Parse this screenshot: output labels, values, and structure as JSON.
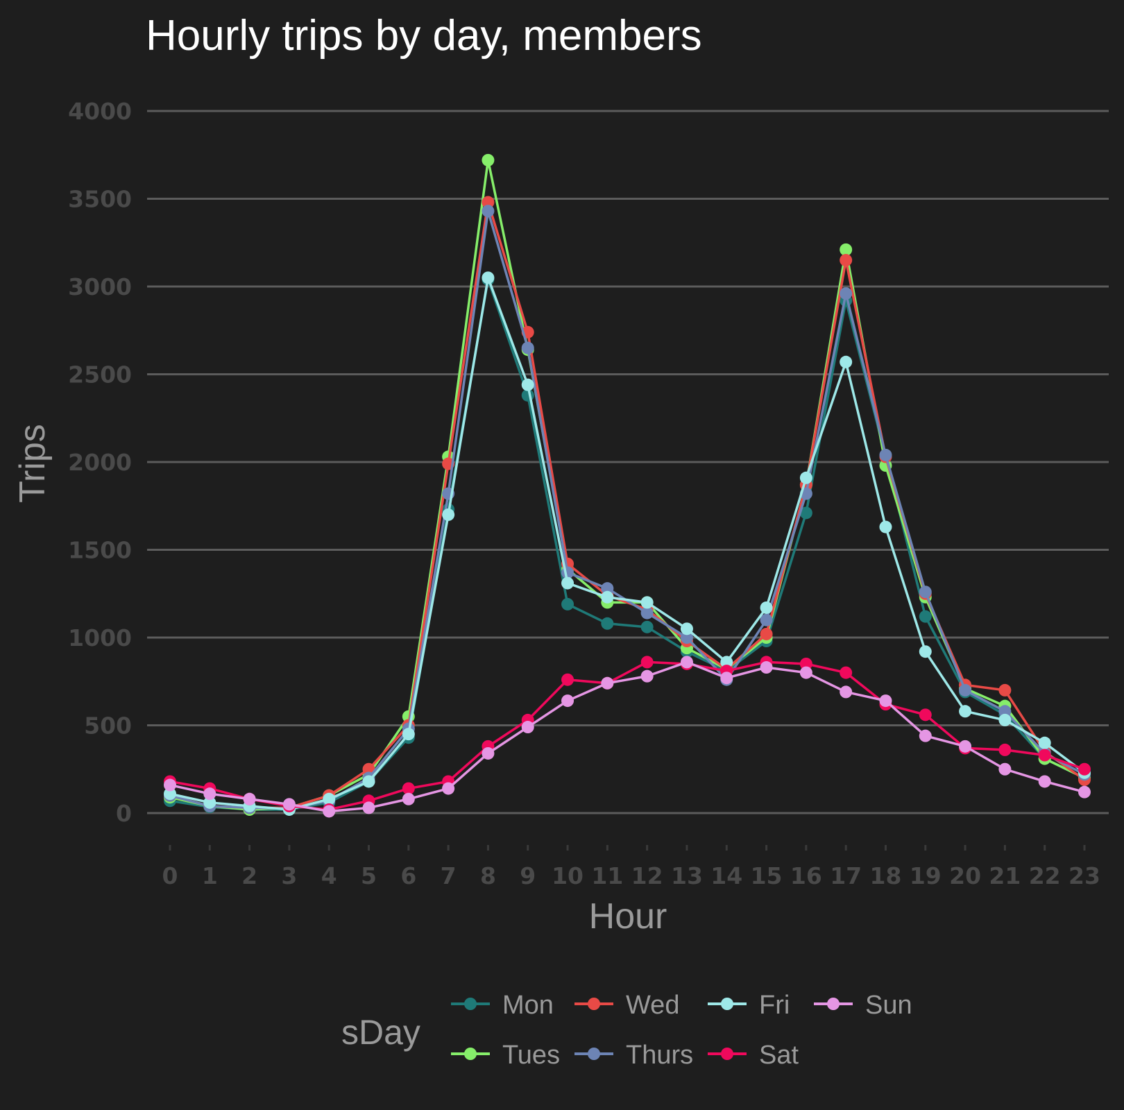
{
  "chart_data": {
    "type": "line",
    "title": "Hourly trips by day, members",
    "xlabel": "Hour",
    "ylabel": "Trips",
    "x": [
      0,
      1,
      2,
      3,
      4,
      5,
      6,
      7,
      8,
      9,
      10,
      11,
      12,
      13,
      14,
      15,
      16,
      17,
      18,
      19,
      20,
      21,
      22,
      23
    ],
    "ylim": [
      0,
      4000
    ],
    "yticks": [
      0,
      500,
      1000,
      1500,
      2000,
      2500,
      3000,
      3500,
      4000
    ],
    "grid": true,
    "legend": {
      "title": "sDay",
      "placement": "bottom",
      "order": [
        "Mon",
        "Tues",
        "Wed",
        "Thurs",
        "Fri",
        "Sat",
        "Sun"
      ]
    },
    "series": [
      {
        "name": "Mon",
        "color": "#1f7a78",
        "values": [
          70,
          35,
          20,
          20,
          60,
          180,
          430,
          1730,
          3040,
          2380,
          1190,
          1080,
          1060,
          920,
          810,
          980,
          1710,
          2920,
          2030,
          1120,
          690,
          560,
          310,
          200
        ]
      },
      {
        "name": "Tues",
        "color": "#86ee6a",
        "values": [
          90,
          40,
          20,
          30,
          100,
          220,
          550,
          2030,
          3720,
          2640,
          1390,
          1200,
          1200,
          940,
          820,
          1000,
          1870,
          3210,
          1980,
          1230,
          710,
          610,
          310,
          200
        ]
      },
      {
        "name": "Wed",
        "color": "#e84a46",
        "values": [
          100,
          40,
          30,
          30,
          100,
          250,
          500,
          1990,
          3480,
          2740,
          1420,
          1240,
          1160,
          980,
          820,
          1020,
          1870,
          3150,
          2030,
          1250,
          730,
          700,
          350,
          190
        ]
      },
      {
        "name": "Thurs",
        "color": "#6d84b5",
        "values": [
          100,
          40,
          30,
          25,
          70,
          200,
          480,
          1820,
          3430,
          2650,
          1370,
          1280,
          1140,
          1000,
          760,
          1100,
          1820,
          2960,
          2040,
          1260,
          700,
          580,
          340,
          220
        ]
      },
      {
        "name": "Fri",
        "color": "#9ee8e8",
        "values": [
          110,
          60,
          40,
          20,
          80,
          180,
          450,
          1700,
          3050,
          2440,
          1310,
          1230,
          1200,
          1050,
          860,
          1170,
          1910,
          2570,
          1630,
          920,
          580,
          530,
          400,
          230
        ]
      },
      {
        "name": "Sat",
        "color": "#f0095c",
        "values": [
          180,
          140,
          80,
          40,
          20,
          70,
          140,
          180,
          380,
          530,
          760,
          740,
          860,
          850,
          810,
          860,
          850,
          800,
          620,
          560,
          370,
          360,
          330,
          250
        ]
      },
      {
        "name": "Sun",
        "color": "#e596e4",
        "values": [
          160,
          110,
          80,
          50,
          10,
          30,
          80,
          140,
          340,
          490,
          640,
          740,
          780,
          860,
          770,
          830,
          800,
          690,
          640,
          440,
          380,
          250,
          180,
          120
        ]
      }
    ]
  }
}
